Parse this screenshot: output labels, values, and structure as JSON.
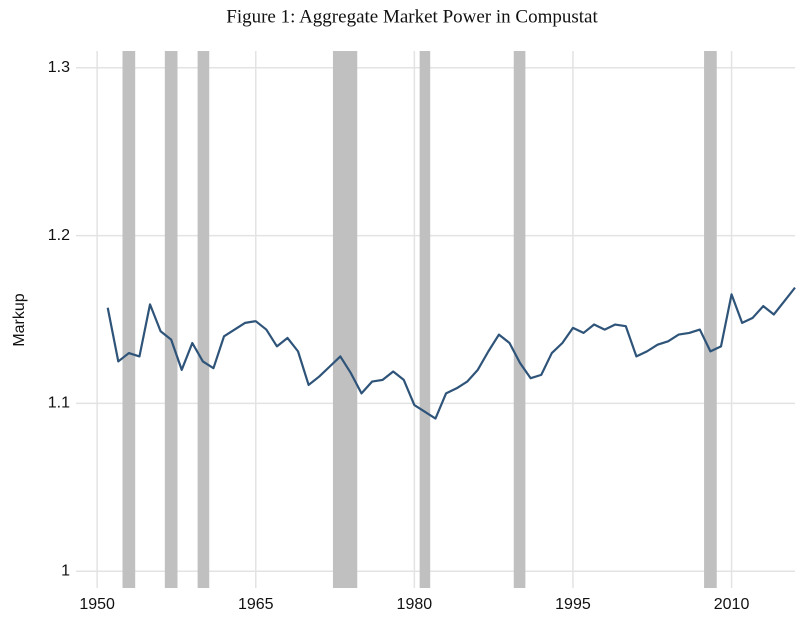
{
  "chart_data": {
    "type": "line",
    "title": "Figure 1: Aggregate Market Power in Compustat",
    "y_label": "Markup",
    "x": [
      1951,
      1952,
      1953,
      1954,
      1955,
      1956,
      1957,
      1958,
      1959,
      1960,
      1961,
      1962,
      1963,
      1964,
      1965,
      1966,
      1967,
      1968,
      1969,
      1970,
      1971,
      1972,
      1973,
      1974,
      1975,
      1976,
      1977,
      1978,
      1979,
      1980,
      1981,
      1982,
      1983,
      1984,
      1985,
      1986,
      1987,
      1988,
      1989,
      1990,
      1991,
      1992,
      1993,
      1994,
      1995,
      1996,
      1997,
      1998,
      1999,
      2000,
      2001,
      2002,
      2003,
      2004,
      2005,
      2006,
      2007,
      2008,
      2009,
      2010,
      2011,
      2012,
      2013,
      2014,
      2015,
      2016
    ],
    "values": [
      1.157,
      1.125,
      1.13,
      1.128,
      1.159,
      1.143,
      1.138,
      1.12,
      1.136,
      1.125,
      1.121,
      1.14,
      1.144,
      1.148,
      1.149,
      1.144,
      1.134,
      1.139,
      1.131,
      1.111,
      1.116,
      1.122,
      1.128,
      1.118,
      1.106,
      1.113,
      1.114,
      1.119,
      1.114,
      1.099,
      1.095,
      1.091,
      1.106,
      1.109,
      1.113,
      1.12,
      1.131,
      1.141,
      1.136,
      1.124,
      1.115,
      1.117,
      1.13,
      1.136,
      1.145,
      1.142,
      1.147,
      1.144,
      1.147,
      1.146,
      1.128,
      1.131,
      1.135,
      1.137,
      1.141,
      1.142,
      1.144,
      1.131,
      1.134,
      1.165,
      1.148,
      1.151,
      1.158,
      1.153,
      1.161,
      1.169
    ],
    "color": "#2f5479",
    "shaded_periods": [
      [
        1952.4,
        1953.6
      ],
      [
        1956.4,
        1957.6
      ],
      [
        1959.5,
        1960.6
      ],
      [
        1972.3,
        1974.6
      ],
      [
        1980.5,
        1981.5
      ],
      [
        1989.4,
        1990.5
      ],
      [
        2007.4,
        2008.6
      ]
    ],
    "shade_color": "#c0c0c0",
    "xlim": [
      1948,
      2016
    ],
    "ylim": [
      0.99,
      1.31
    ],
    "xticks": [
      1950,
      1965,
      1980,
      1995,
      2010
    ],
    "yticks": [
      1,
      1.1,
      1.2,
      1.3
    ],
    "grid": true
  }
}
